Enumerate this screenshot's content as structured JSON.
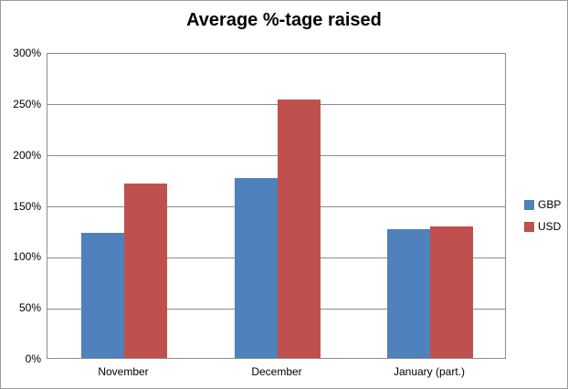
{
  "chart_data": {
    "type": "bar",
    "title": "Average %-tage raised",
    "categories": [
      "November",
      "December",
      "January (part.)"
    ],
    "series": [
      {
        "name": "GBP",
        "color": "#4F81BD",
        "values": [
          123,
          176,
          126
        ]
      },
      {
        "name": "USD",
        "color": "#C0504D",
        "values": [
          171,
          253,
          129
        ]
      }
    ],
    "xlabel": "",
    "ylabel": "",
    "ylim": [
      0,
      300
    ],
    "yticks": [
      {
        "value": 0,
        "label": "0%"
      },
      {
        "value": 50,
        "label": "50%"
      },
      {
        "value": 100,
        "label": "100%"
      },
      {
        "value": 150,
        "label": "150%"
      },
      {
        "value": 200,
        "label": "200%"
      },
      {
        "value": 250,
        "label": "250%"
      },
      {
        "value": 300,
        "label": "300%"
      }
    ],
    "grid": true,
    "legend_position": "right"
  },
  "colors": {
    "gridline": "#8C8C8C",
    "plot_border": "#8C8C8C",
    "chart_border": "#9B9B9B",
    "text": "#000000",
    "background": "#FFFFFF"
  }
}
